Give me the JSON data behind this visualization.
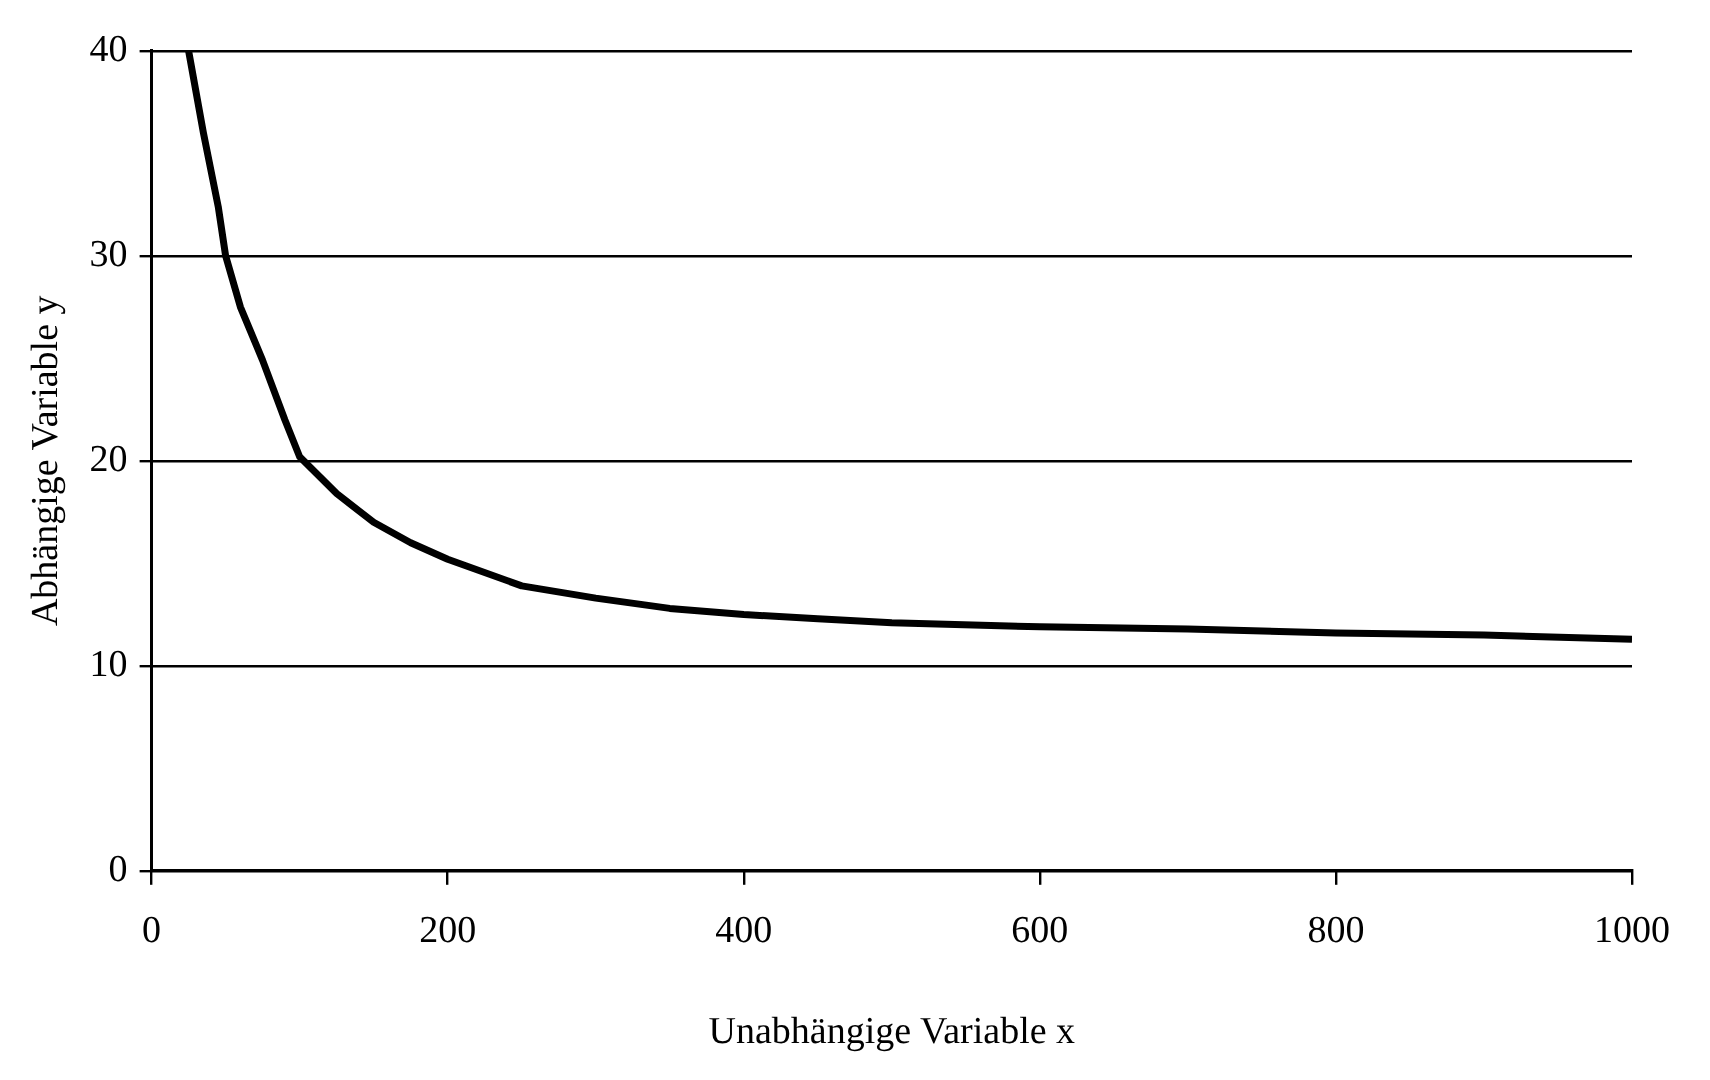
{
  "chart_data": {
    "type": "line",
    "xlabel": "Unabhängige Variable x",
    "ylabel": "Abhängige Variable y",
    "series": [
      {
        "color": "#000000",
        "x": [
          25,
          35,
          45,
          50,
          60,
          75,
          90,
          100,
          125,
          150,
          175,
          200,
          250,
          300,
          350,
          400,
          450,
          500,
          600,
          700,
          800,
          900,
          1000
        ],
        "values": [
          40,
          36,
          32.4,
          30,
          27.5,
          24.9,
          22,
          20.2,
          18.4,
          17,
          16,
          15.2,
          13.9,
          13.3,
          12.8,
          12.5,
          12.3,
          12.1,
          11.9,
          11.8,
          11.6,
          11.5,
          11.3
        ]
      }
    ],
    "xlim": [
      0,
      1000
    ],
    "xticks": [
      0,
      200,
      400,
      600,
      800,
      1000
    ],
    "ylim": [
      0,
      40
    ],
    "yticks": [
      0,
      10,
      20,
      30,
      40
    ],
    "grid": "y",
    "legend": false,
    "marker": "none",
    "line_style": "solid"
  }
}
